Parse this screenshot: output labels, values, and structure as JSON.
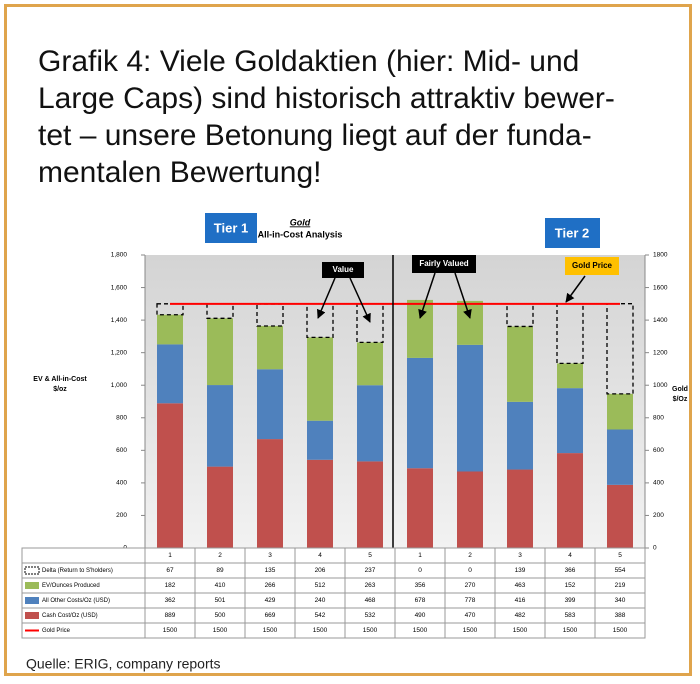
{
  "heading_lines": [
    "Grafik 4: Viele Goldaktien (hier: Mid- und",
    "Large Caps) sind historisch attraktiv bewer-",
    "tet – unsere Betonung liegt auf der funda-",
    "mentalen Bewertung!"
  ],
  "source": "Quelle: ERIG, company reports",
  "chart_data": {
    "type": "bar",
    "stacked": true,
    "title": "Gold",
    "subtitle": "All-in-Cost Analysis",
    "y_label_lines": [
      "EV & All-in-Cost",
      "$/oz"
    ],
    "y2_label_lines": [
      "Gold",
      "$/Oz"
    ],
    "groups": [
      "Tier 1",
      "Tier 2"
    ],
    "annotations": [
      "Value",
      "Fairly Valued",
      "Gold Price"
    ],
    "categories": [
      "1",
      "2",
      "3",
      "4",
      "5",
      "1",
      "2",
      "3",
      "4",
      "5"
    ],
    "series": [
      {
        "name": "Cash Cost/Oz (USD)",
        "color": "#c0504d",
        "values": [
          889,
          500,
          669,
          542,
          532,
          490,
          470,
          482,
          583,
          388
        ]
      },
      {
        "name": "All Other Costs/Oz (USD)",
        "color": "#4f81bd",
        "values": [
          362,
          501,
          429,
          240,
          468,
          678,
          778,
          416,
          399,
          340
        ]
      },
      {
        "name": "EV/Ounces Produced",
        "color": "#9bbb59",
        "values": [
          182,
          410,
          266,
          512,
          263,
          356,
          270,
          463,
          152,
          219
        ]
      },
      {
        "name": "Delta (Return to S'holders)",
        "color": "#ffffff",
        "dashed": true,
        "values": [
          67,
          89,
          135,
          206,
          237,
          0,
          0,
          139,
          366,
          554
        ]
      },
      {
        "name": "Gold Price",
        "color": "#ff0000",
        "type": "line",
        "axis": "y2",
        "values": [
          1500,
          1500,
          1500,
          1500,
          1500,
          1500,
          1500,
          1500,
          1500,
          1500
        ]
      }
    ],
    "ylim": [
      0,
      1800
    ],
    "yticks": [
      0,
      200,
      400,
      600,
      800,
      {
        "value": 1000,
        "label": "1,000"
      },
      {
        "value": 1200,
        "label": "1,200"
      },
      {
        "value": 1400,
        "label": "1,400"
      },
      {
        "value": 1600,
        "label": "1,600"
      },
      {
        "value": 1800,
        "label": "1,800"
      }
    ],
    "y2lim": [
      0,
      1800
    ],
    "y2ticks": [
      0,
      200,
      400,
      600,
      800,
      1000,
      1200,
      1400,
      1600,
      1800
    ],
    "table_row_order": [
      3,
      2,
      1,
      0,
      4
    ]
  }
}
